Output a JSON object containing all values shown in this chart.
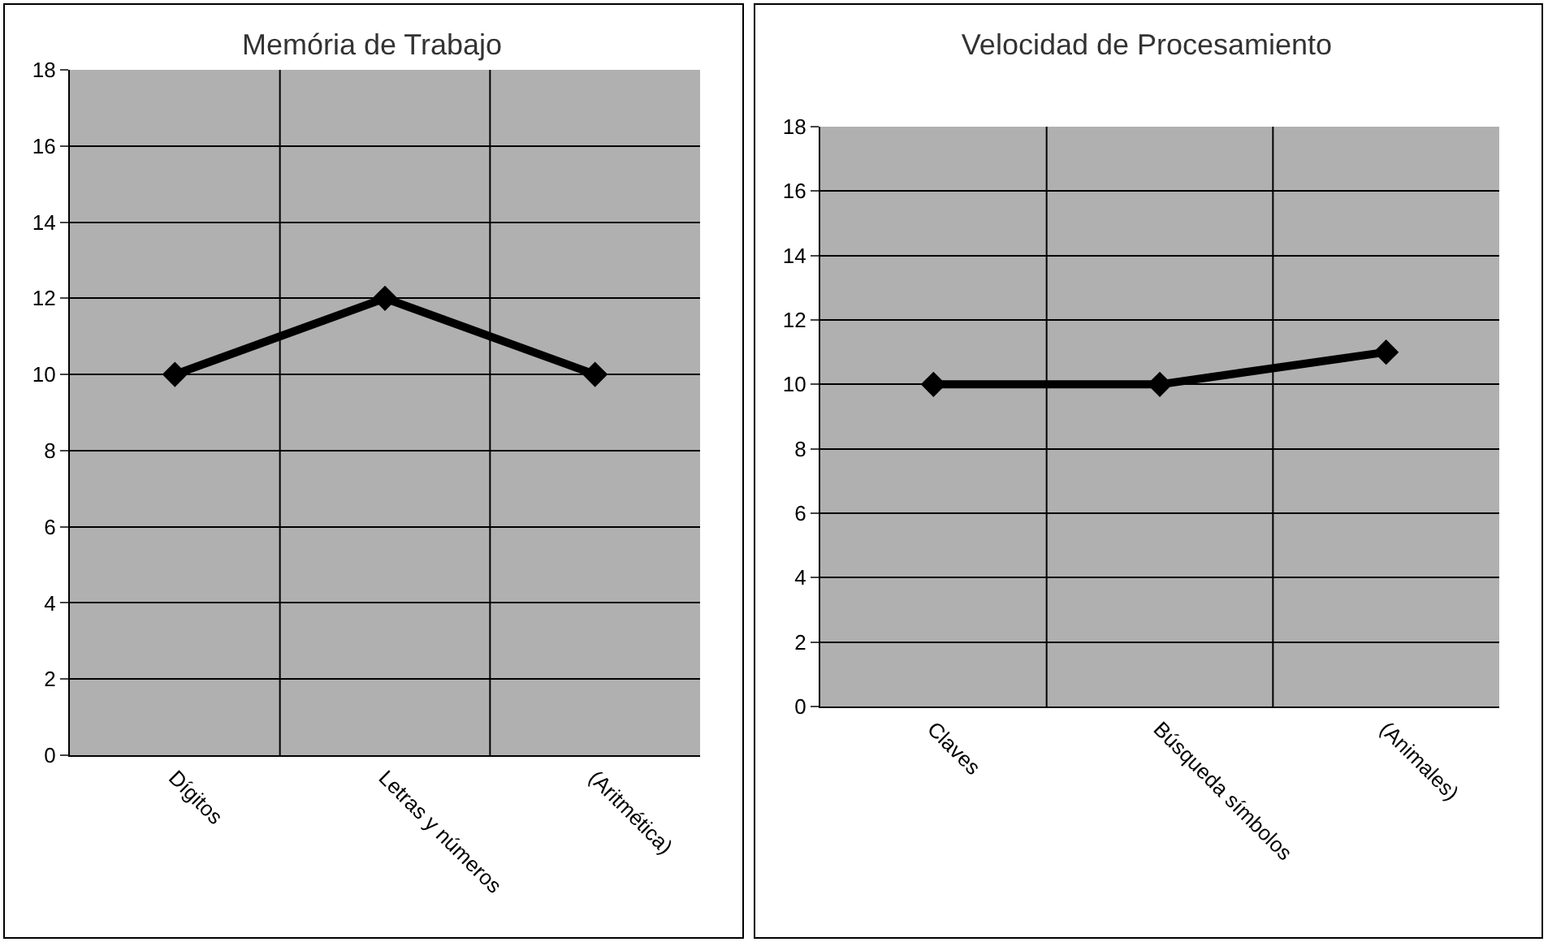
{
  "chart_data": [
    {
      "type": "line",
      "title": "Memória de Trabajo",
      "categories": [
        "Dígitos",
        "Letras y números",
        "(Aritmética)"
      ],
      "values": [
        10,
        12,
        10
      ],
      "color": "#000000",
      "ylim": [
        0,
        18
      ],
      "yticks": [
        0,
        2,
        4,
        6,
        8,
        10,
        12,
        14,
        16,
        18
      ],
      "grid": true,
      "marker": "diamond",
      "line_style": "solid"
    },
    {
      "type": "line",
      "title": "Velocidad de Procesamiento",
      "categories": [
        "Claves",
        "Búsqueda símbolos",
        "(Animales)"
      ],
      "values": [
        10,
        10,
        11
      ],
      "color": "#000000",
      "ylim": [
        0,
        18
      ],
      "yticks": [
        0,
        2,
        4,
        6,
        8,
        10,
        12,
        14,
        16,
        18
      ],
      "grid": true,
      "marker": "diamond",
      "line_style": "solid"
    }
  ]
}
